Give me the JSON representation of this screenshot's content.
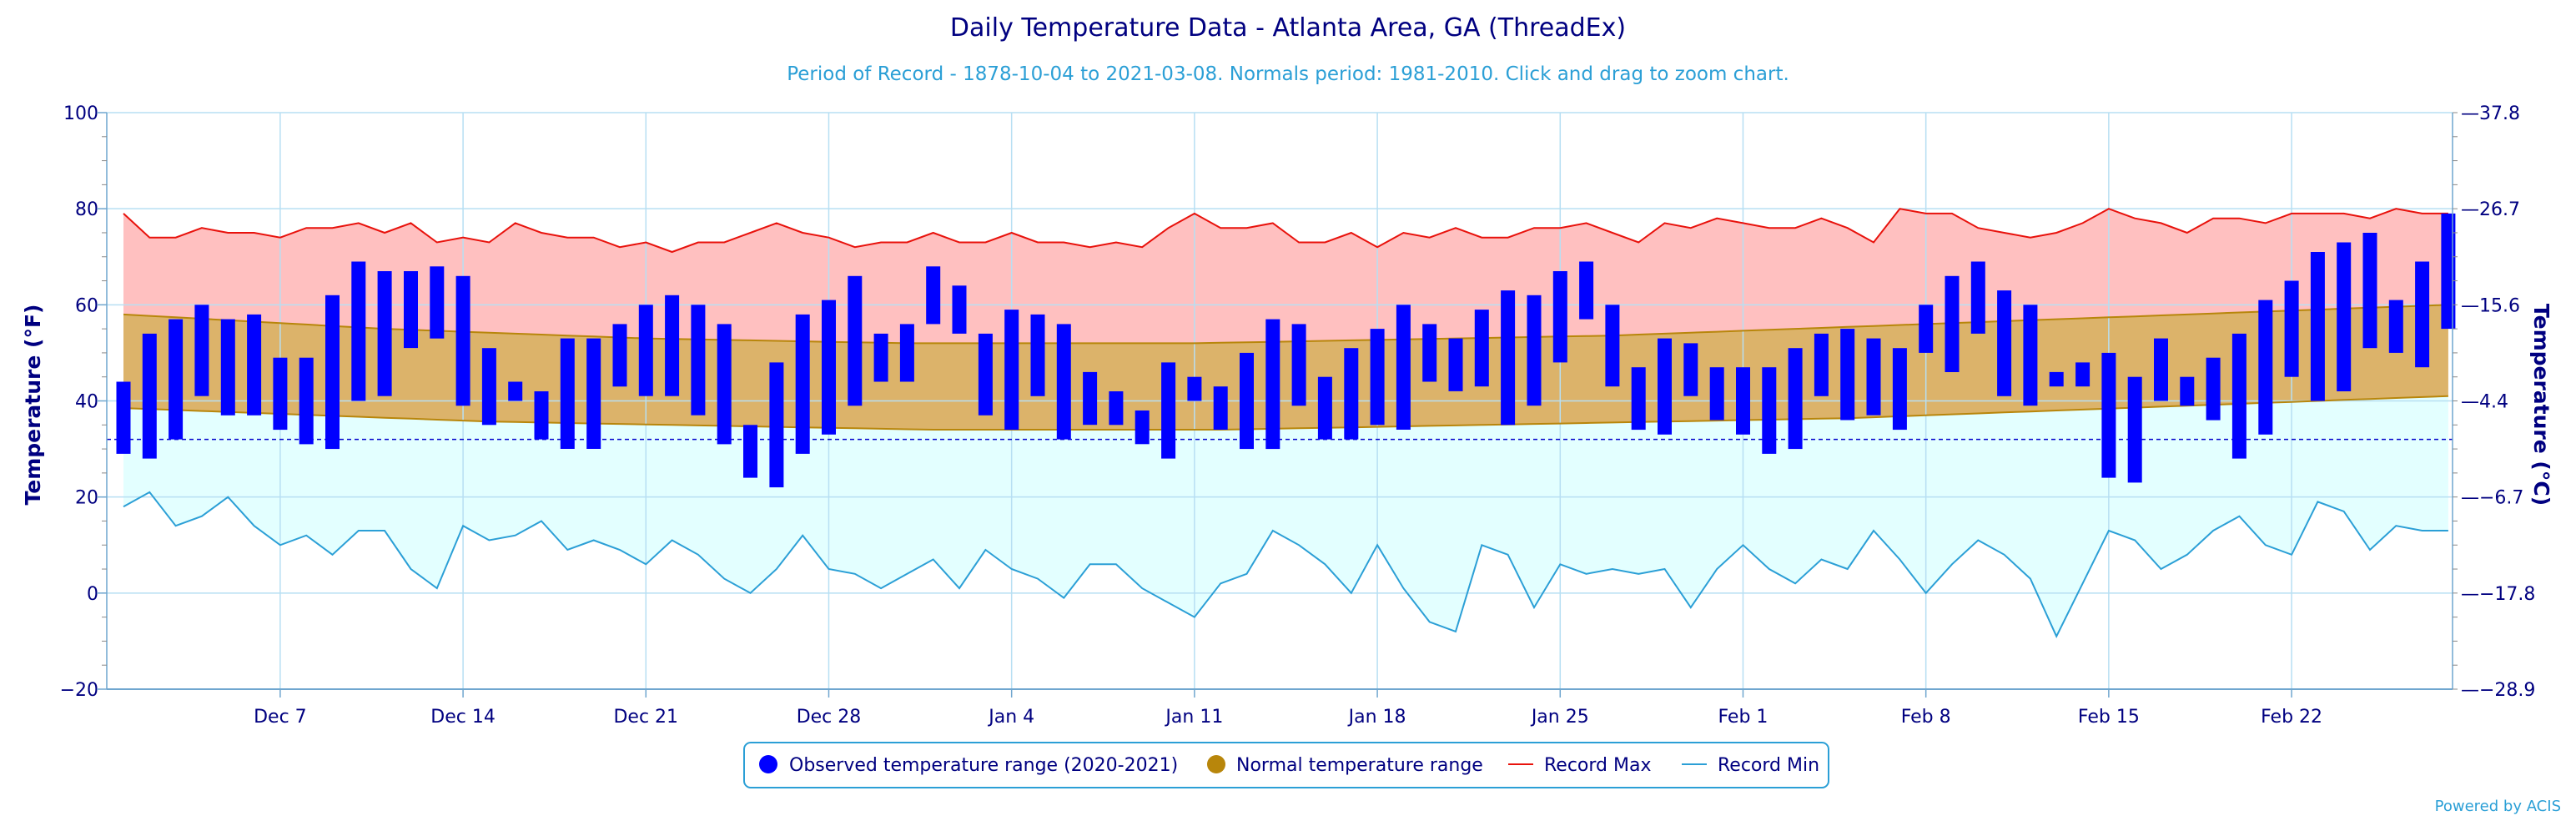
{
  "chart_data": {
    "type": "bar",
    "title": "Daily Temperature Data - Atlanta Area, GA (ThreadEx)",
    "subtitle": "Period of Record - 1878-10-04 to 2021-03-08. Normals period: 1981-2010. Click and drag to zoom chart.",
    "ylabel_left": "Temperature (°F)",
    "ylabel_right": "Temperature (°C)",
    "ylim": [
      -20,
      100
    ],
    "yticks_left": [
      "100",
      "80",
      "60",
      "40",
      "20",
      "0",
      "−20"
    ],
    "yticks_right": [
      "37.8",
      "26.7",
      "15.6",
      "4.4",
      "−6.7",
      "−17.8",
      "−28.9"
    ],
    "x_start": "Dec 1",
    "x_ticks": [
      {
        "day": 6,
        "label": "Dec 7"
      },
      {
        "day": 13,
        "label": "Dec 14"
      },
      {
        "day": 20,
        "label": "Dec 21"
      },
      {
        "day": 27,
        "label": "Dec 28"
      },
      {
        "day": 34,
        "label": "Jan 4"
      },
      {
        "day": 41,
        "label": "Jan 11"
      },
      {
        "day": 48,
        "label": "Jan 18"
      },
      {
        "day": 55,
        "label": "Jan 25"
      },
      {
        "day": 62,
        "label": "Feb 1"
      },
      {
        "day": 69,
        "label": "Feb 8"
      },
      {
        "day": 76,
        "label": "Feb 15"
      },
      {
        "day": 83,
        "label": "Feb 22"
      }
    ],
    "freezing_line": 32,
    "series": [
      {
        "name": "Observed temperature range (2020-2021)",
        "kind": "range-bar",
        "color": "#0000ff",
        "low": [
          29,
          28,
          32,
          41,
          37,
          37,
          34,
          31,
          30,
          40,
          41,
          51,
          53,
          39,
          35,
          40,
          32,
          30,
          30,
          43,
          41,
          41,
          37,
          31,
          24,
          22,
          29,
          33,
          39,
          44,
          44,
          56,
          54,
          37,
          34,
          41,
          32,
          35,
          35,
          31,
          28,
          40,
          34,
          30,
          30,
          39,
          32,
          32,
          35,
          34,
          44,
          42,
          43,
          35,
          39,
          48,
          57,
          43,
          34,
          33,
          41,
          36,
          33,
          29,
          30,
          41,
          36,
          37,
          34,
          50,
          46,
          54,
          41,
          39,
          43,
          43,
          24,
          23,
          40,
          39,
          36,
          28,
          33,
          45,
          40,
          42,
          51,
          50,
          47,
          55
        ],
        "high": [
          44,
          54,
          57,
          60,
          57,
          58,
          49,
          49,
          62,
          69,
          67,
          67,
          68,
          66,
          51,
          44,
          42,
          53,
          53,
          56,
          60,
          62,
          60,
          56,
          35,
          48,
          58,
          61,
          66,
          54,
          56,
          68,
          64,
          54,
          59,
          58,
          56,
          46,
          42,
          38,
          48,
          45,
          43,
          50,
          57,
          56,
          45,
          51,
          55,
          60,
          56,
          53,
          59,
          63,
          62,
          67,
          69,
          60,
          47,
          53,
          52,
          47,
          47,
          47,
          51,
          54,
          55,
          53,
          51,
          60,
          66,
          69,
          63,
          60,
          46,
          48,
          50,
          45,
          53,
          45,
          49,
          54,
          61,
          65,
          71,
          73,
          75,
          61,
          69,
          79
        ]
      },
      {
        "name": "Normal temperature range",
        "kind": "band",
        "color": "#b8860b",
        "low": [
          38.5,
          38.3,
          38.1,
          37.9,
          37.7,
          37.5,
          37.3,
          37.1,
          36.9,
          36.7,
          36.5,
          36.3,
          36.1,
          35.9,
          35.7,
          35.6,
          35.5,
          35.4,
          35.3,
          35.2,
          35.1,
          35.0,
          34.9,
          34.8,
          34.7,
          34.6,
          34.5,
          34.4,
          34.3,
          34.2,
          34.1,
          34.0,
          34.0,
          34.0,
          34.0,
          34.0,
          34.0,
          34.0,
          34.0,
          34.0,
          34.0,
          34.0,
          34.0,
          34.1,
          34.2,
          34.3,
          34.4,
          34.5,
          34.6,
          34.7,
          34.8,
          34.9,
          35.0,
          35.1,
          35.2,
          35.3,
          35.4,
          35.5,
          35.6,
          35.7,
          35.8,
          35.9,
          36.0,
          36.1,
          36.2,
          36.3,
          36.4,
          36.6,
          36.8,
          37.0,
          37.2,
          37.4,
          37.6,
          37.8,
          38.0,
          38.2,
          38.4,
          38.6,
          38.8,
          39.0,
          39.2,
          39.4,
          39.6,
          39.8,
          40.0,
          40.2,
          40.4,
          40.6,
          40.8,
          41.0
        ],
        "high": [
          58.0,
          57.7,
          57.4,
          57.1,
          56.8,
          56.5,
          56.2,
          55.9,
          55.6,
          55.3,
          55.0,
          54.8,
          54.6,
          54.4,
          54.2,
          54.0,
          53.8,
          53.6,
          53.4,
          53.2,
          53.0,
          52.9,
          52.8,
          52.7,
          52.6,
          52.5,
          52.4,
          52.3,
          52.2,
          52.1,
          52.0,
          52.0,
          52.0,
          52.0,
          52.0,
          52.0,
          52.0,
          52.0,
          52.0,
          52.0,
          52.0,
          52.0,
          52.1,
          52.2,
          52.3,
          52.4,
          52.5,
          52.6,
          52.7,
          52.8,
          52.9,
          53.0,
          53.1,
          53.2,
          53.3,
          53.4,
          53.5,
          53.6,
          53.8,
          54.0,
          54.2,
          54.4,
          54.6,
          54.8,
          55.0,
          55.2,
          55.4,
          55.6,
          55.8,
          56.0,
          56.2,
          56.4,
          56.6,
          56.8,
          57.0,
          57.2,
          57.4,
          57.6,
          57.8,
          58.0,
          58.2,
          58.4,
          58.6,
          58.8,
          59.0,
          59.2,
          59.4,
          59.6,
          59.8,
          60.0
        ]
      },
      {
        "name": "Record Max",
        "kind": "line",
        "color": "#e8120c",
        "values": [
          79,
          74,
          74,
          76,
          75,
          75,
          74,
          76,
          76,
          77,
          75,
          77,
          73,
          74,
          73,
          77,
          75,
          74,
          74,
          72,
          73,
          71,
          73,
          73,
          75,
          77,
          75,
          74,
          72,
          73,
          73,
          75,
          73,
          73,
          75,
          73,
          73,
          72,
          73,
          72,
          76,
          79,
          76,
          76,
          77,
          73,
          73,
          75,
          72,
          75,
          74,
          76,
          74,
          74,
          76,
          76,
          77,
          75,
          73,
          77,
          76,
          78,
          77,
          76,
          76,
          78,
          76,
          73,
          80,
          79,
          79,
          76,
          75,
          74,
          75,
          77,
          80,
          78,
          77,
          75,
          78,
          78,
          77,
          79,
          79,
          79,
          78,
          80,
          79,
          79
        ]
      },
      {
        "name": "Record Min",
        "kind": "line",
        "color": "#2b9fd6",
        "values": [
          18,
          21,
          14,
          16,
          20,
          14,
          10,
          12,
          8,
          13,
          13,
          5,
          1,
          14,
          11,
          12,
          15,
          9,
          11,
          9,
          6,
          11,
          8,
          3,
          0,
          5,
          12,
          5,
          4,
          1,
          4,
          7,
          1,
          9,
          5,
          3,
          -1,
          6,
          6,
          1,
          -2,
          -5,
          2,
          4,
          13,
          10,
          6,
          0,
          10,
          1,
          -6,
          -8,
          10,
          8,
          -3,
          6,
          4,
          5,
          4,
          5,
          -3,
          5,
          10,
          5,
          2,
          7,
          5,
          13,
          7,
          0,
          6,
          11,
          8,
          3,
          -9,
          2,
          13,
          11,
          5,
          8,
          13,
          16,
          10,
          8,
          19,
          17,
          9,
          14,
          13,
          13
        ]
      }
    ],
    "legend": {
      "placement": "bottom-center",
      "items": [
        {
          "label": "Observed temperature range (2020-2021)",
          "color": "#0000ff",
          "symbol": "circle"
        },
        {
          "label": "Normal temperature range",
          "color": "#b8860b",
          "symbol": "circle"
        },
        {
          "label": "Record Max",
          "color": "#e8120c",
          "symbol": "line"
        },
        {
          "label": "Record Min",
          "color": "#2b9fd6",
          "symbol": "line"
        }
      ]
    },
    "credits": "Powered by ACIS",
    "colors": {
      "record_max_fill": "#ffc0c0",
      "normal_fill": "#dcb36a",
      "record_min_fill": "#e3ffff",
      "grid": "#b7dff3",
      "freezing_line": "#0000cc"
    }
  }
}
